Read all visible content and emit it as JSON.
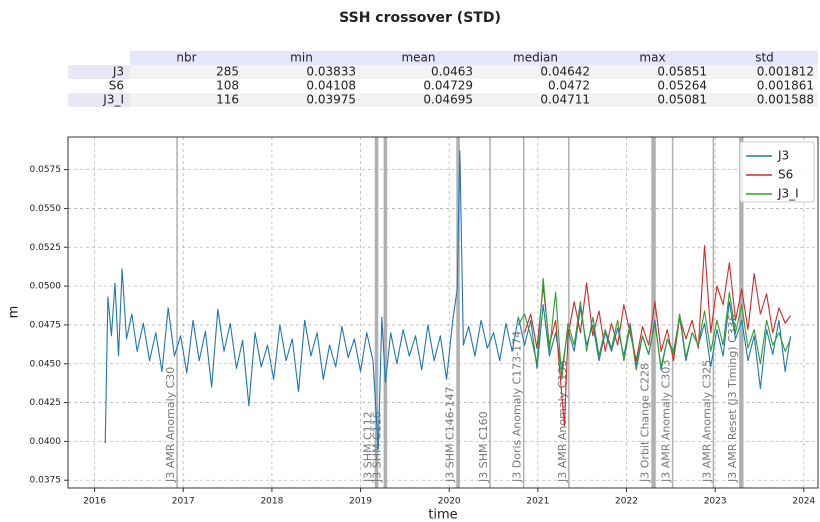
{
  "chart_data": {
    "type": "line",
    "title": "SSH crossover (STD)",
    "table": {
      "columns": [
        "nbr",
        "min",
        "mean",
        "median",
        "max",
        "std"
      ],
      "rows": [
        {
          "name": "J3",
          "values": [
            285,
            0.03833,
            0.0463,
            0.04642,
            0.05851,
            0.001812
          ]
        },
        {
          "name": "S6",
          "values": [
            108,
            0.04108,
            0.04729,
            0.0472,
            0.05264,
            0.001861
          ]
        },
        {
          "name": "J3_I",
          "values": [
            116,
            0.03975,
            0.04695,
            0.04711,
            0.05081,
            0.001588
          ]
        }
      ]
    },
    "xlabel": "time",
    "ylabel": "m",
    "xlim": [
      2015.7,
      2024.16
    ],
    "xticks": [
      2016,
      2017,
      2018,
      2019,
      2020,
      2021,
      2022,
      2023,
      2024
    ],
    "ylim": [
      0.037,
      0.0596
    ],
    "yticks": [
      0.0375,
      {
        "value": 0.04,
        "label": "0.0400"
      },
      0.0425,
      {
        "value": 0.045,
        "label": "0.0450"
      },
      0.0475,
      {
        "value": 0.05,
        "label": "0.0500"
      },
      0.0525,
      {
        "value": 0.055,
        "label": "0.0550"
      },
      0.0575
    ],
    "grid": true,
    "legend": "upper right",
    "annotations": [
      {
        "x": 2016.93,
        "text": "J3 AMR Anomaly C30"
      },
      {
        "x": 2019.16,
        "x_end": 2019.2,
        "text": "J3 SHM C112"
      },
      {
        "x": 2019.26,
        "x_end": 2019.3,
        "text": "J3 SHM C116"
      },
      {
        "x": 2020.08,
        "x_end": 2020.12,
        "text": "J3 SHM C146-147"
      },
      {
        "x": 2020.46,
        "text": "J3 SHM C160"
      },
      {
        "x": 2020.84,
        "text": "J3 Doris Anomaly C173-174"
      },
      {
        "x": 2021.35,
        "text": "J3 AMR Anomaly C193"
      },
      {
        "x": 2022.28,
        "x_end": 2022.33,
        "text": "J3 Orbit Change C228"
      },
      {
        "x": 2022.52,
        "text": "J3 AMR Anomaly C303"
      },
      {
        "x": 2022.98,
        "text": "J3 AMR Anomaly C325"
      },
      {
        "x": 2023.27,
        "x_end": 2023.32,
        "text": "J3 AMR Reset (J3 Timing) C336"
      }
    ],
    "series": [
      {
        "name": "J3",
        "color": "#1f77b4",
        "x": [
          2016.12,
          2016.15,
          2016.19,
          2016.23,
          2016.27,
          2016.31,
          2016.36,
          2016.42,
          2016.48,
          2016.55,
          2016.62,
          2016.69,
          2016.76,
          2016.83,
          2016.9,
          2016.97,
          2017.04,
          2017.11,
          2017.18,
          2017.25,
          2017.32,
          2017.39,
          2017.46,
          2017.53,
          2017.6,
          2017.67,
          2017.74,
          2017.81,
          2017.88,
          2017.95,
          2018.02,
          2018.09,
          2018.16,
          2018.23,
          2018.3,
          2018.37,
          2018.44,
          2018.51,
          2018.58,
          2018.65,
          2018.72,
          2018.79,
          2018.86,
          2018.93,
          2019.0,
          2019.07,
          2019.14,
          2019.2,
          2019.24,
          2019.28,
          2019.34,
          2019.41,
          2019.48,
          2019.55,
          2019.62,
          2019.69,
          2019.76,
          2019.83,
          2019.9,
          2019.97,
          2020.04,
          2020.09,
          2020.12,
          2020.16,
          2020.22,
          2020.29,
          2020.36,
          2020.43,
          2020.5,
          2020.57,
          2020.64,
          2020.71,
          2020.78,
          2020.85,
          2020.92,
          2020.99,
          2021.06,
          2021.13,
          2021.2,
          2021.27,
          2021.34,
          2021.41,
          2021.48,
          2021.55,
          2021.62,
          2021.69,
          2021.76,
          2021.83,
          2021.9,
          2021.97,
          2022.04,
          2022.11,
          2022.18,
          2022.25,
          2022.32,
          2022.39,
          2022.46,
          2022.53,
          2022.6,
          2022.67,
          2022.74,
          2022.81,
          2022.88,
          2022.95,
          2023.02,
          2023.09,
          2023.16,
          2023.23,
          2023.3,
          2023.37,
          2023.44,
          2023.51,
          2023.58,
          2023.65,
          2023.72,
          2023.79,
          2023.85
        ],
        "values": [
          0.0399,
          0.0493,
          0.0468,
          0.0502,
          0.0455,
          0.0511,
          0.0466,
          0.0482,
          0.0458,
          0.0476,
          0.0452,
          0.047,
          0.0445,
          0.0486,
          0.0455,
          0.0468,
          0.0444,
          0.0478,
          0.0452,
          0.0471,
          0.0435,
          0.0485,
          0.0458,
          0.0476,
          0.0447,
          0.0465,
          0.0423,
          0.047,
          0.0448,
          0.0462,
          0.044,
          0.0475,
          0.0452,
          0.0466,
          0.0432,
          0.0478,
          0.0455,
          0.047,
          0.044,
          0.0462,
          0.0448,
          0.0474,
          0.0454,
          0.0466,
          0.0445,
          0.047,
          0.0452,
          0.0395,
          0.048,
          0.0438,
          0.047,
          0.045,
          0.0472,
          0.0455,
          0.0468,
          0.0446,
          0.0475,
          0.0452,
          0.0468,
          0.044,
          0.0478,
          0.0498,
          0.0587,
          0.0462,
          0.0474,
          0.0455,
          0.0478,
          0.046,
          0.047,
          0.0452,
          0.0476,
          0.0458,
          0.048,
          0.0462,
          0.0478,
          0.0447,
          0.0488,
          0.0455,
          0.047,
          0.0446,
          0.0472,
          0.0458,
          0.0486,
          0.0462,
          0.0475,
          0.0452,
          0.047,
          0.0458,
          0.0473,
          0.0455,
          0.0476,
          0.0449,
          0.0468,
          0.0456,
          0.0478,
          0.0446,
          0.0466,
          0.0458,
          0.048,
          0.0452,
          0.047,
          0.0462,
          0.0476,
          0.0448,
          0.0472,
          0.0455,
          0.049,
          0.0466,
          0.0478,
          0.0452,
          0.0468,
          0.0434,
          0.0472,
          0.0456,
          0.0478,
          0.0445,
          0.0468
        ]
      },
      {
        "name": "S6",
        "color": "#d62728",
        "x": [
          2020.85,
          2020.92,
          2020.99,
          2021.06,
          2021.13,
          2021.2,
          2021.27,
          2021.3,
          2021.34,
          2021.41,
          2021.48,
          2021.55,
          2021.62,
          2021.69,
          2021.76,
          2021.83,
          2021.9,
          2021.97,
          2022.04,
          2022.11,
          2022.18,
          2022.25,
          2022.32,
          2022.39,
          2022.46,
          2022.53,
          2022.6,
          2022.67,
          2022.74,
          2022.81,
          2022.88,
          2022.95,
          2023.02,
          2023.09,
          2023.16,
          2023.23,
          2023.3,
          2023.37,
          2023.44,
          2023.51,
          2023.58,
          2023.65,
          2023.72,
          2023.79,
          2023.85
        ],
        "values": [
          0.047,
          0.0482,
          0.046,
          0.05,
          0.0462,
          0.0478,
          0.043,
          0.041,
          0.0468,
          0.049,
          0.047,
          0.0502,
          0.0468,
          0.0484,
          0.0458,
          0.0476,
          0.0462,
          0.0488,
          0.047,
          0.0452,
          0.0474,
          0.0462,
          0.049,
          0.0458,
          0.0472,
          0.0452,
          0.048,
          0.0466,
          0.0478,
          0.046,
          0.0526,
          0.047,
          0.05,
          0.0488,
          0.0515,
          0.0478,
          0.0498,
          0.0472,
          0.0508,
          0.0482,
          0.0495,
          0.047,
          0.0486,
          0.0476,
          0.0481
        ]
      },
      {
        "name": "J3_I",
        "color": "#2ca02c",
        "x": [
          2020.78,
          2020.85,
          2020.92,
          2020.99,
          2021.06,
          2021.13,
          2021.2,
          2021.27,
          2021.34,
          2021.41,
          2021.48,
          2021.55,
          2021.62,
          2021.69,
          2021.76,
          2021.83,
          2021.9,
          2021.97,
          2022.04,
          2022.11,
          2022.18,
          2022.25,
          2022.32,
          2022.39,
          2022.46,
          2022.53,
          2022.6,
          2022.67,
          2022.74,
          2022.81,
          2022.88,
          2022.95,
          2023.02,
          2023.09,
          2023.16,
          2023.23,
          2023.3,
          2023.37,
          2023.44,
          2023.51,
          2023.58,
          2023.65,
          2023.72,
          2023.79,
          2023.85
        ],
        "values": [
          0.0475,
          0.0482,
          0.0468,
          0.045,
          0.0505,
          0.0458,
          0.0496,
          0.044,
          0.0476,
          0.0462,
          0.049,
          0.0458,
          0.048,
          0.0455,
          0.0472,
          0.046,
          0.0478,
          0.0452,
          0.0474,
          0.0446,
          0.0468,
          0.0456,
          0.0476,
          0.0448,
          0.0466,
          0.0456,
          0.0482,
          0.0454,
          0.047,
          0.0462,
          0.0484,
          0.0458,
          0.0478,
          0.0462,
          0.0496,
          0.047,
          0.0488,
          0.046,
          0.0472,
          0.045,
          0.0478,
          0.0462,
          0.047,
          0.0458,
          0.0466
        ]
      }
    ]
  }
}
